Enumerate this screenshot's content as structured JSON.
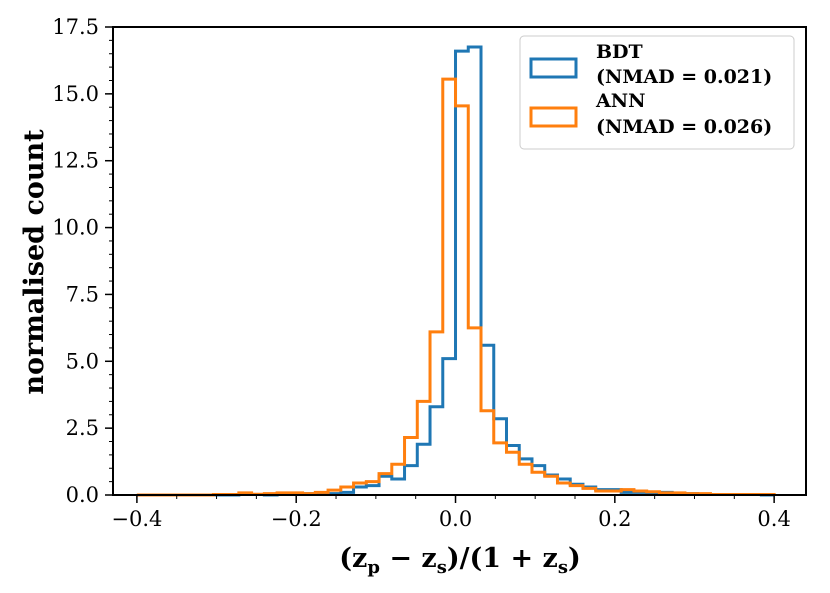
{
  "chart_data": {
    "type": "histogram",
    "xlabel": "(z_p − z_s)/(1 + z_s)",
    "xlabel_parts": {
      "open1": "(z",
      "sub_p": "p",
      "minus": " − z",
      "sub_s1": "s",
      "mid": ")/(1 + z",
      "sub_s2": "s",
      "close": ")"
    },
    "ylabel": "normalised count",
    "xlim": [
      -0.43,
      0.44
    ],
    "ylim": [
      0.0,
      17.5
    ],
    "xticks": [
      -0.4,
      -0.2,
      0.0,
      0.2,
      0.4
    ],
    "xtick_labels": [
      "−0.4",
      "−0.2",
      "0.0",
      "0.2",
      "0.4"
    ],
    "yticks": [
      0.0,
      2.5,
      5.0,
      7.5,
      10.0,
      12.5,
      15.0,
      17.5
    ],
    "ytick_labels": [
      "0.0",
      "2.5",
      "5.0",
      "7.5",
      "10.0",
      "12.5",
      "15.0",
      "17.5"
    ],
    "bins": {
      "start": -0.4,
      "width": 0.016,
      "count": 50
    },
    "series": [
      {
        "name": "BDT",
        "nmad_label": "(NMAD = 0.021)",
        "color": "#1f77b4",
        "values": [
          0,
          0,
          0,
          0,
          0,
          0,
          0,
          0,
          0.02,
          0.02,
          0,
          0.05,
          0.05,
          0.05,
          0.03,
          0.05,
          0.1,
          0.3,
          0.35,
          0.7,
          0.6,
          1.1,
          1.9,
          3.3,
          5.1,
          16.6,
          16.75,
          5.6,
          2.85,
          1.85,
          1.35,
          1.1,
          0.75,
          0.6,
          0.4,
          0.3,
          0.2,
          0.2,
          0.1,
          0.1,
          0.08,
          0.1,
          0.05,
          0.05,
          0.03,
          0.02,
          0.02,
          0.02,
          0.02,
          0.0
        ]
      },
      {
        "name": "ANN",
        "nmad_label": "(NMAD = 0.026)",
        "color": "#ff7f0e",
        "values": [
          0,
          0,
          0,
          0,
          0,
          0,
          0.02,
          0.02,
          0.08,
          0.03,
          0.05,
          0.08,
          0.08,
          0.05,
          0.1,
          0.18,
          0.3,
          0.45,
          0.5,
          0.8,
          1.15,
          2.15,
          3.5,
          6.1,
          15.55,
          14.55,
          6.25,
          3.15,
          1.95,
          1.6,
          1.15,
          0.85,
          0.7,
          0.45,
          0.35,
          0.25,
          0.15,
          0.15,
          0.2,
          0.15,
          0.12,
          0.08,
          0.08,
          0.05,
          0.05,
          0.02,
          0.02,
          0.02,
          0.02,
          0.02
        ]
      }
    ],
    "legend_position": "upper-right"
  }
}
